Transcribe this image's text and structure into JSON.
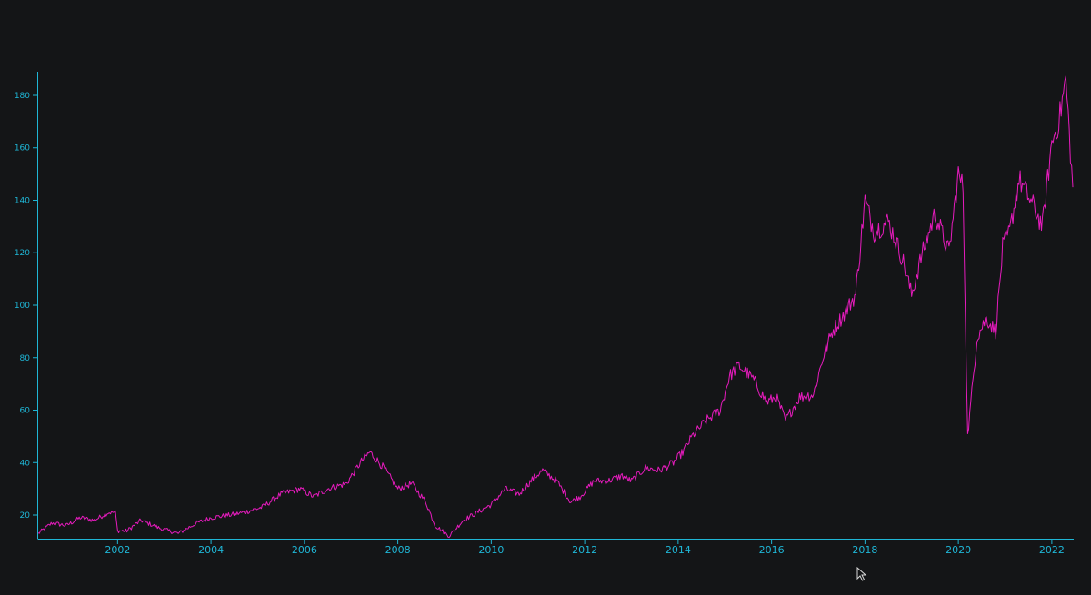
{
  "colors": {
    "background": "#141517",
    "axis": "#1fb6d6",
    "line": "#e61bbd"
  },
  "chart_data": {
    "type": "line",
    "title": "",
    "xlabel": "",
    "ylabel": "",
    "grid": false,
    "legend": "none",
    "xlim": [
      2000.3,
      2022.45
    ],
    "ylim": [
      11,
      189
    ],
    "x_ticks": [
      2002,
      2004,
      2006,
      2008,
      2010,
      2012,
      2014,
      2016,
      2018,
      2020,
      2022
    ],
    "x_tick_labels": [
      "2002",
      "2004",
      "2006",
      "2008",
      "2010",
      "2012",
      "2014",
      "2016",
      "2018",
      "2020",
      "2022"
    ],
    "y_ticks": [
      20,
      40,
      60,
      80,
      100,
      120,
      140,
      160,
      180
    ],
    "y_tick_labels": [
      "20",
      "40",
      "60",
      "80",
      "100",
      "120",
      "140",
      "160",
      "180"
    ],
    "series": [
      {
        "values": [
          [
            2000.3,
            13
          ],
          [
            2000.6,
            17
          ],
          [
            2000.9,
            16
          ],
          [
            2001.2,
            19
          ],
          [
            2001.5,
            18
          ],
          [
            2001.8,
            21
          ],
          [
            2001.95,
            21
          ],
          [
            2002.0,
            14
          ],
          [
            2002.2,
            14
          ],
          [
            2002.5,
            18
          ],
          [
            2002.9,
            15
          ],
          [
            2003.3,
            13
          ],
          [
            2003.7,
            17
          ],
          [
            2004.0,
            19
          ],
          [
            2004.4,
            20
          ],
          [
            2004.7,
            21
          ],
          [
            2005.1,
            23
          ],
          [
            2005.5,
            28
          ],
          [
            2005.9,
            30
          ],
          [
            2006.2,
            27
          ],
          [
            2006.5,
            30
          ],
          [
            2006.9,
            32
          ],
          [
            2007.2,
            40
          ],
          [
            2007.4,
            44
          ],
          [
            2007.7,
            38
          ],
          [
            2008.0,
            30
          ],
          [
            2008.3,
            32
          ],
          [
            2008.6,
            25
          ],
          [
            2008.8,
            16
          ],
          [
            2009.1,
            12
          ],
          [
            2009.4,
            18
          ],
          [
            2009.7,
            21
          ],
          [
            2010.0,
            24
          ],
          [
            2010.3,
            30
          ],
          [
            2010.6,
            28
          ],
          [
            2010.9,
            34
          ],
          [
            2011.1,
            37
          ],
          [
            2011.4,
            33
          ],
          [
            2011.7,
            25
          ],
          [
            2011.9,
            27
          ],
          [
            2012.2,
            33
          ],
          [
            2012.5,
            33
          ],
          [
            2012.8,
            35
          ],
          [
            2013.0,
            33
          ],
          [
            2013.3,
            38
          ],
          [
            2013.6,
            37
          ],
          [
            2013.9,
            40
          ],
          [
            2014.1,
            44
          ],
          [
            2014.3,
            50
          ],
          [
            2014.6,
            56
          ],
          [
            2014.9,
            60
          ],
          [
            2015.1,
            73
          ],
          [
            2015.3,
            77
          ],
          [
            2015.6,
            72
          ],
          [
            2015.9,
            63
          ],
          [
            2016.1,
            65
          ],
          [
            2016.3,
            56
          ],
          [
            2016.6,
            65
          ],
          [
            2016.9,
            66
          ],
          [
            2017.1,
            80
          ],
          [
            2017.3,
            90
          ],
          [
            2017.6,
            98
          ],
          [
            2017.8,
            104
          ],
          [
            2018.0,
            140
          ],
          [
            2018.2,
            128
          ],
          [
            2018.5,
            132
          ],
          [
            2018.8,
            118
          ],
          [
            2019.0,
            104
          ],
          [
            2019.2,
            118
          ],
          [
            2019.5,
            135
          ],
          [
            2019.8,
            120
          ],
          [
            2020.0,
            150
          ],
          [
            2020.1,
            145
          ],
          [
            2020.2,
            50
          ],
          [
            2020.4,
            88
          ],
          [
            2020.6,
            95
          ],
          [
            2020.8,
            90
          ],
          [
            2020.95,
            122
          ],
          [
            2021.1,
            128
          ],
          [
            2021.3,
            148
          ],
          [
            2021.6,
            138
          ],
          [
            2021.8,
            130
          ],
          [
            2022.0,
            162
          ],
          [
            2022.15,
            170
          ],
          [
            2022.3,
            186
          ],
          [
            2022.45,
            145
          ]
        ]
      }
    ]
  }
}
